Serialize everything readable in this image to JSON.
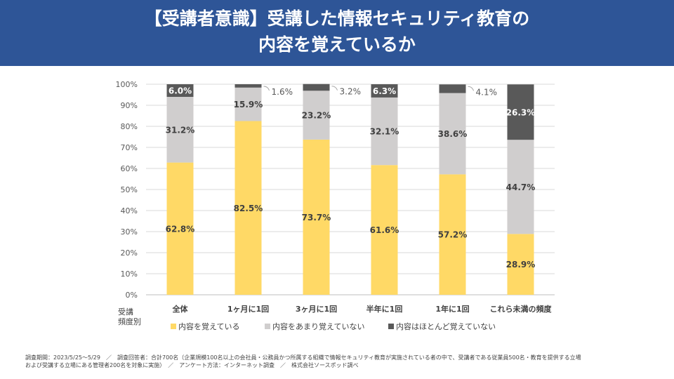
{
  "header": {
    "title_line1": "【受講者意識】受講した情報セキュリティ教育の",
    "title_line2": "内容を覚えているか"
  },
  "chart_data": {
    "type": "bar",
    "stacked": true,
    "categories": [
      "全体",
      "1ヶ月に1回",
      "3ヶ月に1回",
      "半年に1回",
      "1年に1回",
      "これら未満の頻度"
    ],
    "series": [
      {
        "name": "内容を覚えている",
        "color": "#ffd966",
        "values": [
          62.8,
          82.5,
          73.7,
          61.6,
          57.2,
          28.9
        ],
        "labels": [
          "62.8%",
          "82.5%",
          "73.7%",
          "61.6%",
          "57.2%",
          "28.9%"
        ]
      },
      {
        "name": "内容をあまり覚えていない",
        "color": "#d0cece",
        "values": [
          31.2,
          15.9,
          23.2,
          32.1,
          38.6,
          44.7
        ],
        "labels": [
          "31.2%",
          "15.9%",
          "23.2%",
          "32.1%",
          "38.6%",
          "44.7%"
        ]
      },
      {
        "name": "内容はほとんど覚えていない",
        "color": "#595959",
        "values": [
          6.0,
          1.6,
          3.2,
          6.3,
          4.1,
          26.3
        ],
        "labels": [
          "6.0%",
          "1.6%",
          "3.2%",
          "6.3%",
          "4.1%",
          "26.3%"
        ]
      }
    ],
    "y_ticks": [
      "0%",
      "10%",
      "20%",
      "30%",
      "40%",
      "50%",
      "60%",
      "70%",
      "80%",
      "90%",
      "100%"
    ],
    "ylim": [
      0,
      100
    ],
    "x_axis_title": [
      "受講",
      "頻度別"
    ],
    "grid": true,
    "legend_position": "bottom"
  },
  "footnote": {
    "line1": "調査期間：2023/5/25〜5/29　／　調査回答者：合計700名（企業規模100名以上の会社員・公務員かつ所属する組織で情報セキュリティ教育が実施されている者の中で、受講者である従業員500名・教育を提供する立場",
    "line2": "および受講する立場にある管理者200名を対象に実施）　／　アンケート方法：インターネット調査　／　株式会社ソースポッド調べ"
  }
}
